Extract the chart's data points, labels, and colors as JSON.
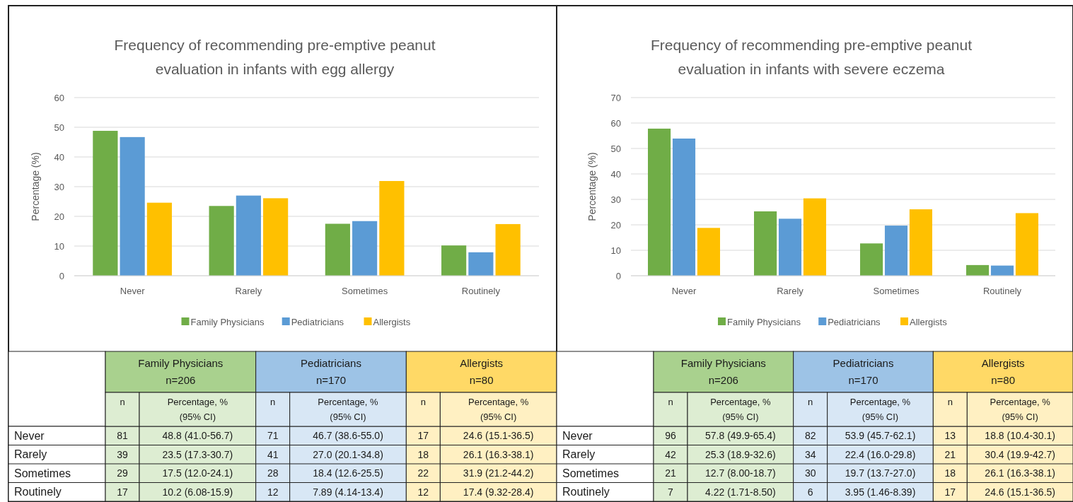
{
  "chart_data": [
    {
      "type": "bar",
      "title": "Frequency of recommending pre-emptive peanut evaluation in infants with egg allergy",
      "ylabel": "Percentage (%)",
      "categories": [
        "Never",
        "Rarely",
        "Sometimes",
        "Routinely"
      ],
      "series": [
        {
          "name": "Family Physicians",
          "color": "#70ad47",
          "values": [
            48.8,
            23.5,
            17.5,
            10.2
          ]
        },
        {
          "name": "Pediatricians",
          "color": "#5b9bd5",
          "values": [
            46.7,
            27.0,
            18.4,
            7.9
          ]
        },
        {
          "name": "Allergists",
          "color": "#ffc000",
          "values": [
            24.6,
            26.1,
            31.9,
            17.4
          ]
        }
      ],
      "ylim": [
        0,
        60
      ],
      "yticks": [
        0,
        10,
        20,
        30,
        40,
        50,
        60
      ],
      "grid": "y",
      "legend": "bottom"
    },
    {
      "type": "heatmap",
      "annotations": [
        "Family Physicians\nn=206",
        "Pediatricians\nn=170",
        "Allergists\nn=80"
      ],
      "categories": [
        "n",
        "Percentage, %\n(95% CI)",
        "n",
        "Percentage, %\n(95% CI)",
        "n",
        "Percentage, %\n(95% CI)"
      ],
      "y_categories": [
        "Never",
        "Rarely",
        "Sometimes",
        "Routinely"
      ],
      "colors": [
        "#a9d18e",
        "#a9d18e",
        "#9dc3e6",
        "#9dc3e6",
        "#ffd966",
        "#ffd966"
      ],
      "cells": [
        [
          null,
          null,
          null,
          null,
          null,
          null
        ],
        [
          null,
          null,
          null,
          null,
          null,
          null
        ],
        [
          null,
          null,
          null,
          null,
          null,
          null
        ],
        [
          null,
          null,
          null,
          null,
          null,
          null
        ]
      ],
      "cell_labels": [
        [
          "81",
          "48.8 (41.0-56.7)",
          "71",
          "46.7 (38.6-55.0)",
          "17",
          "24.6 (15.1-36.5)"
        ],
        [
          "39",
          "23.5 (17.3-30.7)",
          "41",
          "27.0 (20.1-34.8)",
          "18",
          "26.1 (16.3-38.1)"
        ],
        [
          "29",
          "17.5 (12.0-24.1)",
          "28",
          "18.4 (12.6-25.5)",
          "22",
          "31.9 (21.2-44.2)"
        ],
        [
          "17",
          "10.2 (6.08-15.9)",
          "12",
          "7.89 (4.14-13.4)",
          "12",
          "17.4 (9.32-28.4)"
        ]
      ]
    },
    {
      "type": "bar",
      "title": "Frequency of recommending pre-emptive peanut evaluation in infants with severe eczema",
      "ylabel": "Percentage (%)",
      "categories": [
        "Never",
        "Rarely",
        "Sometimes",
        "Routinely"
      ],
      "series": [
        {
          "name": "Family Physicians",
          "color": "#70ad47",
          "values": [
            57.8,
            25.3,
            12.7,
            4.2
          ]
        },
        {
          "name": "Pediatricians",
          "color": "#5b9bd5",
          "values": [
            53.9,
            22.4,
            19.7,
            4.0
          ]
        },
        {
          "name": "Allergists",
          "color": "#ffc000",
          "values": [
            18.8,
            30.4,
            26.1,
            24.6
          ]
        }
      ],
      "ylim": [
        0,
        70
      ],
      "yticks": [
        0,
        10,
        20,
        30,
        40,
        50,
        60,
        70
      ],
      "grid": "y",
      "legend": "bottom"
    },
    {
      "type": "heatmap",
      "annotations": [
        "Family Physicians\nn=206",
        "Pediatricians\nn=170",
        "Allergists\nn=80"
      ],
      "categories": [
        "n",
        "Percentage, %\n(95% CI)",
        "n",
        "Percentage, %\n(95% CI)",
        "n",
        "Percentage, %\n(95% CI)"
      ],
      "y_categories": [
        "Never",
        "Rarely",
        "Sometimes",
        "Routinely"
      ],
      "colors": [
        "#a9d18e",
        "#a9d18e",
        "#9dc3e6",
        "#9dc3e6",
        "#ffd966",
        "#ffd966"
      ],
      "cells": [
        [
          null,
          null,
          null,
          null,
          null,
          null
        ],
        [
          null,
          null,
          null,
          null,
          null,
          null
        ],
        [
          null,
          null,
          null,
          null,
          null,
          null
        ],
        [
          null,
          null,
          null,
          null,
          null,
          null
        ]
      ],
      "cell_labels": [
        [
          "96",
          "57.8 (49.9-65.4)",
          "82",
          "53.9 (45.7-62.1)",
          "13",
          "18.8 (10.4-30.1)"
        ],
        [
          "42",
          "25.3 (18.9-32.6)",
          "34",
          "22.4 (16.0-29.8)",
          "21",
          "30.4 (19.9-42.7)"
        ],
        [
          "21",
          "12.7 (8.00-18.7)",
          "30",
          "19.7 (13.7-27.0)",
          "18",
          "26.1 (16.3-38.1)"
        ],
        [
          "7",
          "4.22 (1.71-8.50)",
          "6",
          "3.95 (1.46-8.39)",
          "17",
          "24.6 (15.1-36.5)"
        ]
      ]
    }
  ]
}
